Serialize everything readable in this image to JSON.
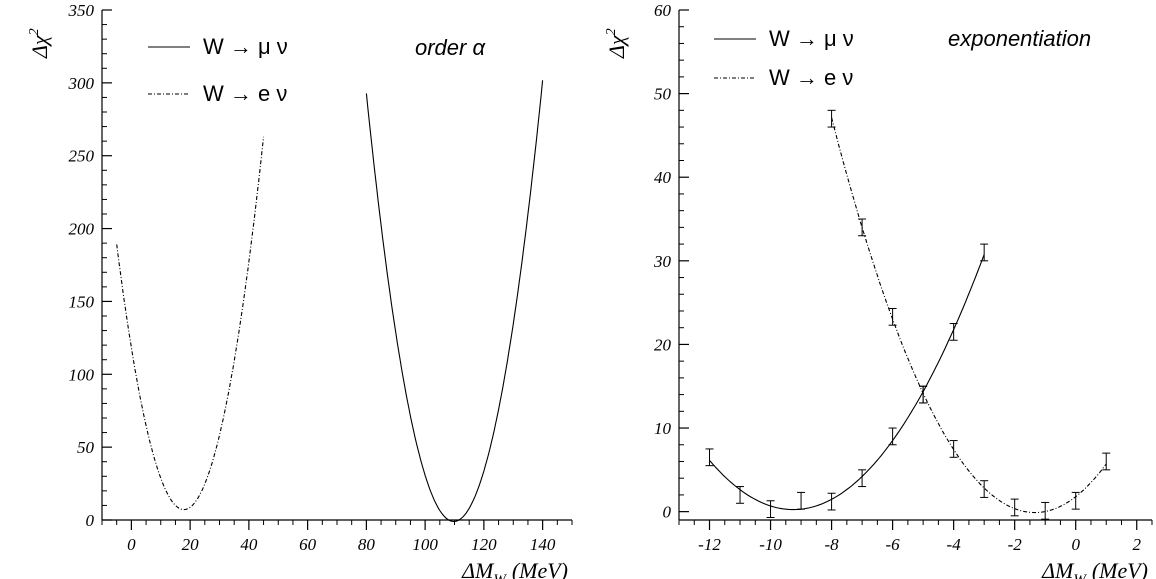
{
  "chart_data": [
    {
      "type": "line",
      "annotation": "order α",
      "ylabel": "Δχ",
      "ylabel_sup": "2",
      "xlabel": "ΔM",
      "xlabel_sub": "W",
      "xlabel_unit": "(MeV)",
      "xlim": [
        -10,
        150
      ],
      "ylim": [
        0,
        350
      ],
      "x_ticks": [
        0,
        20,
        40,
        60,
        80,
        100,
        120,
        140
      ],
      "y_ticks": [
        0,
        50,
        100,
        150,
        200,
        250,
        300,
        350
      ],
      "legend_placement": "top-left",
      "series": [
        {
          "name": "W → μ ν",
          "style": "solid",
          "x": [
            80,
            90,
            100,
            110,
            120,
            130,
            140
          ],
          "y": [
            291,
            130,
            32,
            1,
            32,
            130,
            305
          ]
        },
        {
          "name": "W → e ν",
          "style": "dash-dot",
          "x": [
            -5,
            0,
            10,
            18.5,
            30,
            40,
            45
          ],
          "y": [
            186,
            120,
            36,
            0,
            62,
            170,
            268
          ]
        }
      ]
    },
    {
      "type": "line",
      "annotation": "exponentiation",
      "ylabel": "Δχ",
      "ylabel_sup": "2",
      "xlabel": "ΔM",
      "xlabel_sub": "W",
      "xlabel_unit": "(MeV)",
      "xlim": [
        -13,
        2.5
      ],
      "ylim": [
        -1,
        60
      ],
      "x_ticks": [
        -12,
        -10,
        -8,
        -6,
        -4,
        -2,
        0,
        2
      ],
      "y_ticks": [
        0,
        10,
        20,
        30,
        40,
        50,
        60
      ],
      "legend_placement": "top-left",
      "series": [
        {
          "name": "W → μ ν",
          "style": "solid",
          "x": [
            -12,
            -11,
            -10,
            -9,
            -8,
            -7,
            -6,
            -5,
            -4,
            -3
          ],
          "y": [
            6.5,
            2,
            0.3,
            1.3,
            1.2,
            4,
            9,
            14,
            21.5,
            31
          ],
          "err": [
            1,
            1,
            1,
            1,
            1,
            1,
            1,
            1,
            1,
            1
          ]
        },
        {
          "name": "W → e ν",
          "style": "dash-dot",
          "x": [
            -8,
            -7,
            -6,
            -5,
            -4,
            -3,
            -2,
            -1,
            0,
            1
          ],
          "y": [
            47,
            34,
            23.3,
            14,
            7.5,
            2.7,
            0.5,
            0.1,
            1.3,
            6
          ],
          "err": [
            1,
            1,
            1,
            1,
            1,
            1,
            1,
            1,
            1,
            1
          ]
        }
      ]
    }
  ]
}
